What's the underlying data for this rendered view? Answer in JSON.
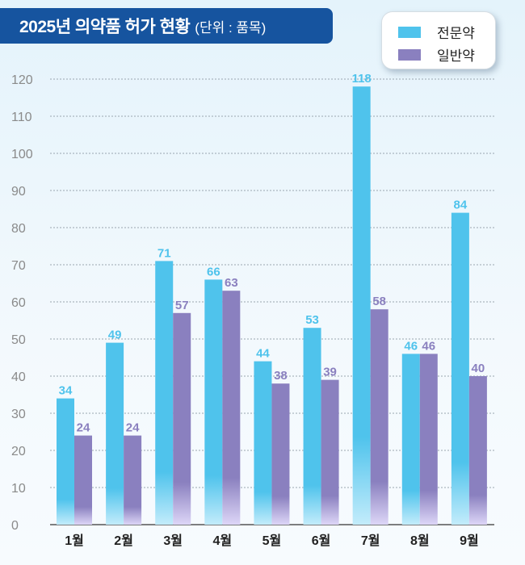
{
  "title": {
    "main": "2025년 의약품 허가 현황",
    "unit": "(단위 : 품목)"
  },
  "colors": {
    "series_1": "#4fc3ec",
    "series_2": "#8a80bf",
    "title_bg": "#16549f"
  },
  "chart_data": {
    "type": "bar",
    "title": "2025년 의약품 허가 현황",
    "subtitle": "(단위 : 품목)",
    "xlabel": "",
    "ylabel": "",
    "ylim": [
      0,
      120
    ],
    "yticks": [
      0,
      10,
      20,
      30,
      40,
      50,
      60,
      70,
      80,
      90,
      100,
      110,
      120
    ],
    "grid": true,
    "legend_position": "top-right",
    "categories": [
      "1월",
      "2월",
      "3월",
      "4월",
      "5월",
      "6월",
      "7월",
      "8월",
      "9월"
    ],
    "series": [
      {
        "name": "전문약",
        "color": "#4fc3ec",
        "values": [
          34,
          49,
          71,
          66,
          44,
          53,
          118,
          46,
          84
        ]
      },
      {
        "name": "일반약",
        "color": "#8a80bf",
        "values": [
          24,
          24,
          57,
          63,
          38,
          39,
          58,
          46,
          40
        ]
      }
    ]
  }
}
